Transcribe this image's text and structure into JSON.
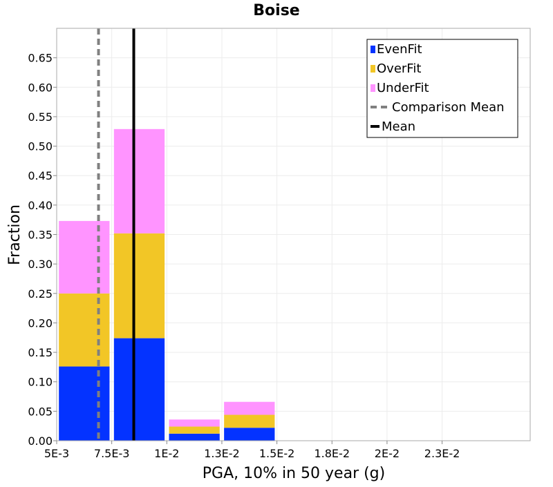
{
  "chart_data": {
    "type": "bar",
    "stacked": true,
    "title": "Boise",
    "xlabel": "PGA, 10% in 50 year (g)",
    "ylabel": "Fraction",
    "xlim": [
      0.005,
      0.0265
    ],
    "ylim": [
      0,
      0.7
    ],
    "grid": true,
    "legend_position": "top-right",
    "x_ticks": [
      {
        "value": 0.005,
        "label": "5E-3"
      },
      {
        "value": 0.0075,
        "label": "7.5E-3"
      },
      {
        "value": 0.01,
        "label": "1E-2"
      },
      {
        "value": 0.0125,
        "label": "1.3E-2"
      },
      {
        "value": 0.015,
        "label": "1.5E-2"
      },
      {
        "value": 0.0175,
        "label": "1.8E-2"
      },
      {
        "value": 0.02,
        "label": "2E-2"
      },
      {
        "value": 0.0225,
        "label": "2.3E-2"
      }
    ],
    "y_ticks": [
      "0.00",
      "0.05",
      "0.10",
      "0.15",
      "0.20",
      "0.25",
      "0.30",
      "0.35",
      "0.40",
      "0.45",
      "0.50",
      "0.55",
      "0.60",
      "0.65"
    ],
    "bins": [
      {
        "x0": 0.0051,
        "x1": 0.0074
      },
      {
        "x0": 0.0076,
        "x1": 0.0099
      },
      {
        "x0": 0.0101,
        "x1": 0.0124
      },
      {
        "x0": 0.0126,
        "x1": 0.0149
      }
    ],
    "series": [
      {
        "name": "EvenFit",
        "color": "#0433ff",
        "values": [
          0.126,
          0.174,
          0.012,
          0.022
        ]
      },
      {
        "name": "OverFit",
        "color": "#f2c626",
        "values": [
          0.124,
          0.178,
          0.012,
          0.022
        ]
      },
      {
        "name": "UnderFit",
        "color": "#ff94ff",
        "values": [
          0.123,
          0.177,
          0.012,
          0.022
        ]
      }
    ],
    "lines": [
      {
        "name": "Comparison Mean",
        "x": 0.0069,
        "color": "#808080",
        "style": "dashed"
      },
      {
        "name": "Mean",
        "x": 0.0085,
        "color": "#000000",
        "style": "solid"
      }
    ]
  }
}
